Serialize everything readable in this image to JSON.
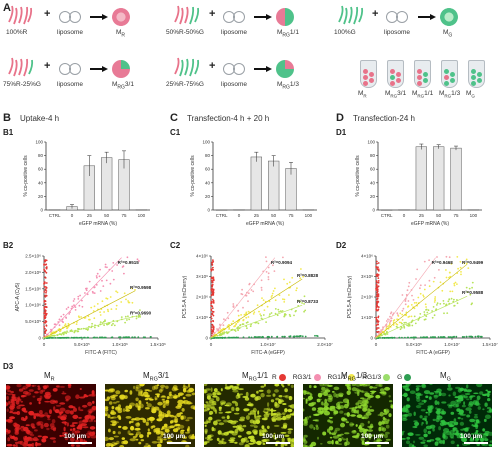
{
  "panels": {
    "A": "A",
    "B": "B",
    "C": "C",
    "D": "D",
    "B1": "B1",
    "B2": "B2",
    "C1": "C1",
    "C2": "C2",
    "D1": "D1",
    "D2": "D2",
    "D3": "D3"
  },
  "schematic": {
    "items": [
      {
        "ratio": "100%R",
        "liposome": "liposome",
        "product": "M",
        "product_sub": "R"
      },
      {
        "ratio": "50%R-50%G",
        "liposome": "liposome",
        "product": "M",
        "product_sub": "RG",
        "product_suffix": "1/1"
      },
      {
        "ratio": "100%G",
        "liposome": "liposome",
        "product": "M",
        "product_sub": "G"
      },
      {
        "ratio": "75%R-25%G",
        "liposome": "liposome",
        "product": "M",
        "product_sub": "RG",
        "product_suffix": "3/1"
      },
      {
        "ratio": "25%R-75%G",
        "liposome": "liposome",
        "product": "M",
        "product_sub": "RG",
        "product_suffix": "1/3"
      }
    ],
    "tubes": [
      {
        "main": "M",
        "sub": "R",
        "suffix": ""
      },
      {
        "main": "M",
        "sub": "RG",
        "suffix": "3/1"
      },
      {
        "main": "M",
        "sub": "RG",
        "suffix": "1/1"
      },
      {
        "main": "M",
        "sub": "RG",
        "suffix": "1/3"
      },
      {
        "main": "M",
        "sub": "G",
        "suffix": ""
      }
    ],
    "colors": {
      "red_mrna": "#e8738a",
      "green_mrna": "#4fc28a",
      "ring": "#9aa0a6"
    }
  },
  "titles": {
    "B": "Uptake-4 h",
    "C": "Transfection-4 h + 20 h",
    "D": "Transfection-24 h"
  },
  "chart_data": [
    {
      "id": "B1",
      "type": "bar",
      "categories": [
        "CTRL",
        "0",
        "25",
        "50",
        "75",
        "100"
      ],
      "values": [
        0.5,
        5,
        65,
        77,
        74,
        0.5
      ],
      "errors": [
        0,
        3,
        15,
        8,
        13,
        0
      ],
      "ylabel": "% co-positive cells",
      "xlabel": "eGFP mRNA (%)",
      "ylim": [
        0,
        100
      ],
      "yticks": [
        "0",
        "20",
        "40",
        "60",
        "80",
        "100"
      ]
    },
    {
      "id": "C1",
      "type": "bar",
      "categories": [
        "CTRL",
        "0",
        "25",
        "50",
        "75",
        "100"
      ],
      "values": [
        0.3,
        0.5,
        78,
        72,
        61,
        0.5
      ],
      "errors": [
        0,
        0,
        7,
        8,
        9,
        0
      ],
      "ylabel": "% co-positive cells",
      "xlabel": "eGFP mRNA (%)",
      "ylim": [
        0,
        100
      ],
      "yticks": [
        "0",
        "20",
        "40",
        "60",
        "80",
        "100"
      ]
    },
    {
      "id": "D1",
      "type": "bar",
      "categories": [
        "CTRL",
        "0",
        "25",
        "50",
        "75",
        "100"
      ],
      "values": [
        0.3,
        0.5,
        93,
        93,
        91,
        0.5
      ],
      "errors": [
        0,
        0,
        4,
        3,
        3,
        0
      ],
      "ylabel": "% co-positive cells",
      "xlabel": "eGFP mRNA (%)",
      "ylim": [
        0,
        100
      ],
      "yticks": [
        "0",
        "20",
        "40",
        "60",
        "80",
        "100"
      ]
    },
    {
      "id": "B2",
      "type": "scatter",
      "xlabel": "FITC-A (FITC)",
      "ylabel": "APC-A (Cy5)",
      "xticks": [
        "0",
        "5.0×10⁵",
        "1.0×10⁶",
        "1.5×10⁶"
      ],
      "yticks": [
        "0",
        "5.0×10⁵",
        "1.0×10⁶",
        "1.5×10⁶",
        "2.0×10⁶",
        "2.5×10⁶"
      ],
      "xlim": [
        0,
        1500000
      ],
      "ylim": [
        0,
        2500000
      ],
      "series": [
        {
          "color": "#e53935",
          "slope": 30
        },
        {
          "color": "#f48fb1",
          "slope": 2.4
        },
        {
          "color": "#f2e94e",
          "slope": 1.2
        },
        {
          "color": "#b6e35a",
          "slope": 0.55
        },
        {
          "color": "#2e9e52",
          "slope": 0.02
        }
      ],
      "r2": [
        "R²=0.9515",
        "R²=0.9598",
        "R²=0.9690"
      ]
    },
    {
      "id": "C2",
      "type": "scatter",
      "xlabel": "FITC-A (eGFP)",
      "ylabel": "PC5.5-A (mCherry)",
      "xticks": [
        "0",
        "1.0×10⁷",
        "2.0×10⁷"
      ],
      "yticks": [
        "0",
        "1×10⁶",
        "2×10⁶",
        "3×10⁶",
        "4×10⁶"
      ],
      "xlim": [
        0,
        20000000
      ],
      "ylim": [
        0,
        4000000
      ],
      "series": [
        {
          "color": "#e53935",
          "slope": 30
        },
        {
          "color": "#f4a6b0",
          "slope": 0.35
        },
        {
          "color": "#f2e94e",
          "slope": 0.18
        },
        {
          "color": "#b6e35a",
          "slope": 0.1
        },
        {
          "color": "#2e9e52",
          "slope": 0.005
        }
      ],
      "r2": [
        "R²=0.9094",
        "R²=0.8828",
        "R²=0.8733"
      ]
    },
    {
      "id": "D2",
      "type": "scatter",
      "xlabel": "FITC-A (eGFP)",
      "ylabel": "PC5.5-A (mCherry)",
      "xticks": [
        "0",
        "5.0×10⁶",
        "1.0×10⁷",
        "1.5×10⁷"
      ],
      "yticks": [
        "0",
        "1×10⁶",
        "2×10⁶",
        "3×10⁶",
        "4×10⁶"
      ],
      "xlim": [
        0,
        15000000
      ],
      "ylim": [
        0,
        4000000
      ],
      "series": [
        {
          "color": "#e53935",
          "slope": 30
        },
        {
          "color": "#f4a6b0",
          "slope": 0.5
        },
        {
          "color": "#f2e94e",
          "slope": 0.3
        },
        {
          "color": "#b6e35a",
          "slope": 0.17
        },
        {
          "color": "#2e9e52",
          "slope": 0.005
        }
      ],
      "r2": [
        "R²=0.9468",
        "R²=0.9499",
        "R²=0.9588"
      ]
    }
  ],
  "legend": [
    {
      "label": "R",
      "color": "#e53935"
    },
    {
      "label": "RG3/1",
      "color": "#f48fb1"
    },
    {
      "label": "RG1/1",
      "color": "#f2e94e"
    },
    {
      "label": "RG1/3",
      "color": "#9bdd6b"
    },
    {
      "label": "G",
      "color": "#2e9e52"
    }
  ],
  "microscopy": [
    {
      "main": "M",
      "sub": "R",
      "suffix": "",
      "scale": "100 µm",
      "color": "#e32222",
      "base": "#3a0000"
    },
    {
      "main": "M",
      "sub": "RG",
      "suffix": "3/1",
      "scale": "100 µm",
      "color": "#e6d91f",
      "base": "#2e2a00"
    },
    {
      "main": "M",
      "sub": "RG",
      "suffix": "1/1",
      "scale": "100 µm",
      "color": "#c8e02a",
      "base": "#232a00"
    },
    {
      "main": "M",
      "sub": "RG",
      "suffix": "1/3",
      "scale": "100 µm",
      "color": "#8fd82e",
      "base": "#142800"
    },
    {
      "main": "M",
      "sub": "G",
      "suffix": "",
      "scale": "100 µm",
      "color": "#2fc23f",
      "base": "#002a08"
    }
  ]
}
